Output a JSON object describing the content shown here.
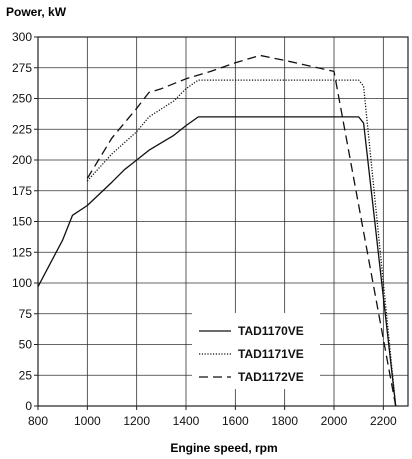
{
  "chart_data": {
    "type": "line",
    "title": "",
    "ylabel": "Power, kW",
    "xlabel": "Engine speed, rpm",
    "xlim": [
      800,
      2300
    ],
    "ylim": [
      0,
      300
    ],
    "x_ticks": [
      800,
      1000,
      1200,
      1400,
      1600,
      1800,
      2000,
      2200
    ],
    "y_ticks": [
      0,
      25,
      50,
      75,
      100,
      125,
      150,
      175,
      200,
      225,
      250,
      275,
      300
    ],
    "grid": true,
    "legend_position": "bottom-right",
    "series": [
      {
        "name": "TAD1170VE",
        "style": "solid",
        "x": [
          800,
          900,
          940,
          1000,
          1100,
          1150,
          1250,
          1300,
          1350,
          1400,
          1450,
          1600,
          1800,
          2000,
          2100,
          2120,
          2250
        ],
        "y": [
          97,
          135,
          155,
          163,
          182,
          192,
          208,
          214,
          220,
          228,
          235,
          235,
          235,
          235,
          235,
          230,
          0
        ]
      },
      {
        "name": "TAD1171VE",
        "style": "dotted",
        "x": [
          1000,
          1100,
          1200,
          1250,
          1350,
          1400,
          1450,
          1600,
          1800,
          2000,
          2100,
          2120,
          2250
        ],
        "y": [
          183,
          205,
          223,
          235,
          248,
          258,
          265,
          265,
          265,
          265,
          265,
          260,
          0
        ]
      },
      {
        "name": "TAD1172VE",
        "style": "dashed",
        "x": [
          1000,
          1100,
          1200,
          1250,
          1300,
          1350,
          1400,
          1500,
          1600,
          1700,
          1800,
          2000,
          2250
        ],
        "y": [
          185,
          218,
          242,
          255,
          258,
          262,
          266,
          272,
          279,
          285,
          281,
          272,
          0
        ]
      }
    ]
  }
}
